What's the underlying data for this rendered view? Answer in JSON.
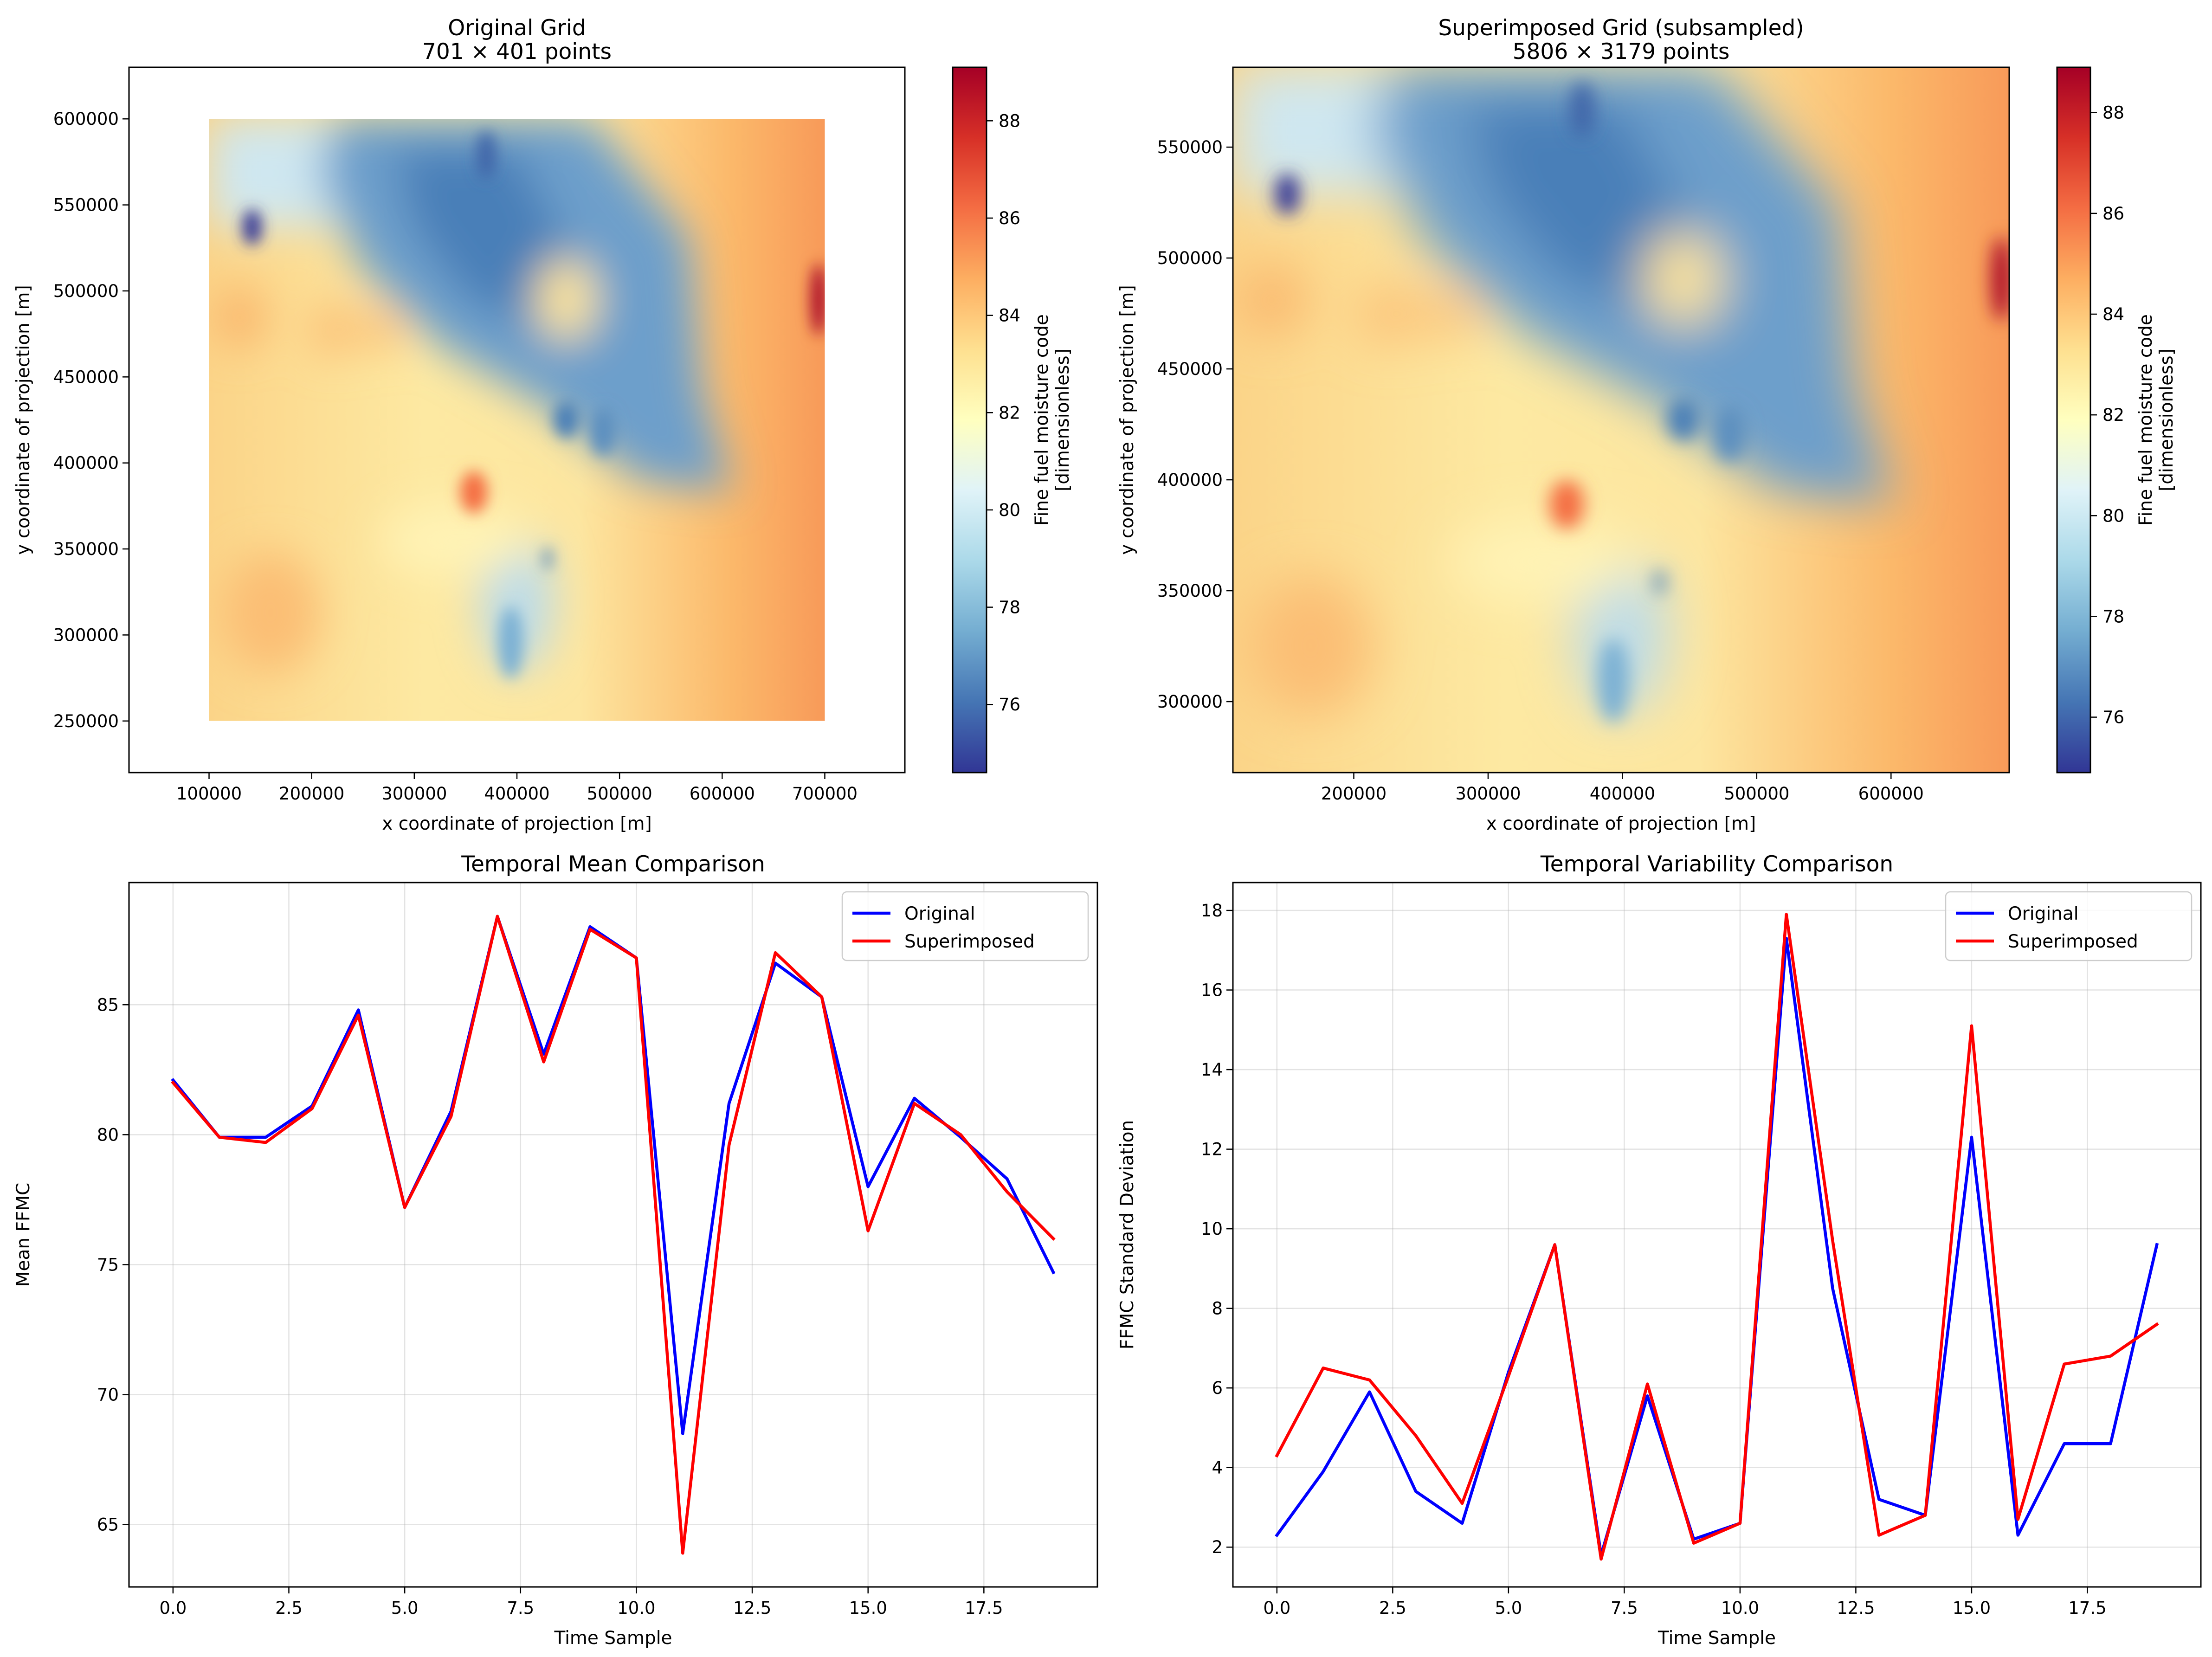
{
  "chart_data": [
    {
      "type": "heatmap",
      "title": "Original Grid",
      "subtitle": "701 × 401 points",
      "xlabel": "x coordinate of projection [m]",
      "ylabel": "y coordinate of projection [m]",
      "xlim": [
        22000,
        778000
      ],
      "ylim": [
        220000,
        630000
      ],
      "data_extent": {
        "x": [
          100000,
          700000
        ],
        "y": [
          250000,
          600000
        ]
      },
      "xticks": [
        100000,
        200000,
        300000,
        400000,
        500000,
        600000,
        700000
      ],
      "xtick_labels": [
        "100000",
        "200000",
        "300000",
        "400000",
        "500000",
        "600000",
        "700000"
      ],
      "yticks": [
        250000,
        300000,
        350000,
        400000,
        450000,
        500000,
        550000,
        600000
      ],
      "ytick_labels": [
        "250000",
        "300000",
        "350000",
        "400000",
        "450000",
        "500000",
        "550000",
        "600000"
      ],
      "colorbar": {
        "label_line1": "Fine fuel moisture code",
        "label_line2": "[dimensionless]",
        "colormap": "RdYlBu_r",
        "range": [
          74.6,
          89.1
        ],
        "ticks": [
          76,
          78,
          80,
          82,
          84,
          86,
          88
        ],
        "tick_labels": [
          "76",
          "78",
          "80",
          "82",
          "84",
          "86",
          "88"
        ]
      }
    },
    {
      "type": "heatmap",
      "title": "Superimposed Grid (subsampled)",
      "subtitle": "5806 × 3179 points",
      "xlabel": "x coordinate of projection [m]",
      "ylabel": "y coordinate of projection [m]",
      "xlim": [
        110000,
        688000
      ],
      "ylim": [
        268000,
        586000
      ],
      "data_extent": {
        "x": [
          110000,
          688000
        ],
        "y": [
          268000,
          586000
        ]
      },
      "xticks": [
        200000,
        300000,
        400000,
        500000,
        600000
      ],
      "xtick_labels": [
        "200000",
        "300000",
        "400000",
        "500000",
        "600000"
      ],
      "yticks": [
        300000,
        350000,
        400000,
        450000,
        500000,
        550000
      ],
      "ytick_labels": [
        "300000",
        "350000",
        "400000",
        "450000",
        "500000",
        "550000"
      ],
      "colorbar": {
        "label_line1": "Fine fuel moisture code",
        "label_line2": "[dimensionless]",
        "colormap": "RdYlBu_r",
        "range": [
          74.9,
          88.9
        ],
        "ticks": [
          76,
          78,
          80,
          82,
          84,
          86,
          88
        ],
        "tick_labels": [
          "76",
          "78",
          "80",
          "82",
          "84",
          "86",
          "88"
        ]
      }
    },
    {
      "type": "line",
      "title": "Temporal Mean Comparison",
      "xlabel": "Time Sample",
      "ylabel": "Mean FFMC",
      "xlim": [
        -0.95,
        19.95
      ],
      "ylim": [
        62.6,
        89.7
      ],
      "grid": true,
      "legend": "top-right",
      "xticks": [
        0,
        2.5,
        5,
        7.5,
        10,
        12.5,
        15,
        17.5
      ],
      "xtick_labels": [
        "0.0",
        "2.5",
        "5.0",
        "7.5",
        "10.0",
        "12.5",
        "15.0",
        "17.5"
      ],
      "yticks": [
        65,
        70,
        75,
        80,
        85
      ],
      "ytick_labels": [
        "65",
        "70",
        "75",
        "80",
        "85"
      ],
      "x": [
        0,
        1,
        2,
        3,
        4,
        5,
        6,
        7,
        8,
        9,
        10,
        11,
        12,
        13,
        14,
        15,
        16,
        17,
        18,
        19
      ],
      "series": [
        {
          "name": "Original",
          "color": "#0000ff",
          "values": [
            82.1,
            79.9,
            79.9,
            81.1,
            84.8,
            77.2,
            80.9,
            88.4,
            83.1,
            88.0,
            86.8,
            68.5,
            81.2,
            86.6,
            85.3,
            78.0,
            81.4,
            79.9,
            78.3,
            74.7
          ]
        },
        {
          "name": "Superimposed",
          "color": "#ff0000",
          "values": [
            82.0,
            79.9,
            79.7,
            81.0,
            84.6,
            77.2,
            80.7,
            88.4,
            82.8,
            87.9,
            86.8,
            63.9,
            79.6,
            87.0,
            85.3,
            76.3,
            81.2,
            80.0,
            77.8,
            76.0
          ]
        }
      ]
    },
    {
      "type": "line",
      "title": "Temporal Variability Comparison",
      "xlabel": "Time Sample",
      "ylabel": "FFMC Standard Deviation",
      "xlim": [
        -0.95,
        19.95
      ],
      "ylim": [
        1.0,
        18.7
      ],
      "grid": true,
      "legend": "top-right",
      "xticks": [
        0,
        2.5,
        5,
        7.5,
        10,
        12.5,
        15,
        17.5
      ],
      "xtick_labels": [
        "0.0",
        "2.5",
        "5.0",
        "7.5",
        "10.0",
        "12.5",
        "15.0",
        "17.5"
      ],
      "yticks": [
        2,
        4,
        6,
        8,
        10,
        12,
        14,
        16,
        18
      ],
      "ytick_labels": [
        "2",
        "4",
        "6",
        "8",
        "10",
        "12",
        "14",
        "16",
        "18"
      ],
      "x": [
        0,
        1,
        2,
        3,
        4,
        5,
        6,
        7,
        8,
        9,
        10,
        11,
        12,
        13,
        14,
        15,
        16,
        17,
        18,
        19
      ],
      "series": [
        {
          "name": "Original",
          "color": "#0000ff",
          "values": [
            2.3,
            3.9,
            5.9,
            3.4,
            2.6,
            6.4,
            9.6,
            1.8,
            5.8,
            2.2,
            2.6,
            17.3,
            8.5,
            3.2,
            2.8,
            12.3,
            2.3,
            4.6,
            4.6,
            9.6
          ]
        },
        {
          "name": "Superimposed",
          "color": "#ff0000",
          "values": [
            4.3,
            6.5,
            6.2,
            4.8,
            3.1,
            6.3,
            9.6,
            1.7,
            6.1,
            2.1,
            2.6,
            17.9,
            9.7,
            2.3,
            2.8,
            15.1,
            2.7,
            6.6,
            6.8,
            7.6
          ]
        }
      ]
    }
  ]
}
